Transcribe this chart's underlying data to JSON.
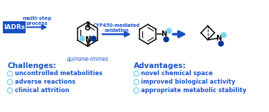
{
  "bg_color": "#ffffff",
  "blue_mid": "#1a4fc4",
  "blue_text": "#1a55cc",
  "cyan_dot": "#7ad4f0",
  "dark_blue_dot": "#003399",
  "challenges_header": "Challenges:",
  "advantages_header": "Advantages:",
  "challenges": [
    "uncontrolled metabolities",
    "adverse reactions",
    "clinical attrition"
  ],
  "advantages": [
    "novel chemical space",
    "improved biological activity",
    "appropriate metabolic stability"
  ],
  "label_iadrs": "IADRs",
  "label_multistep": "multi-step\nprocess",
  "label_cyp": "CYP450-mediated\noxidation",
  "label_quinone": "quinone-imines"
}
